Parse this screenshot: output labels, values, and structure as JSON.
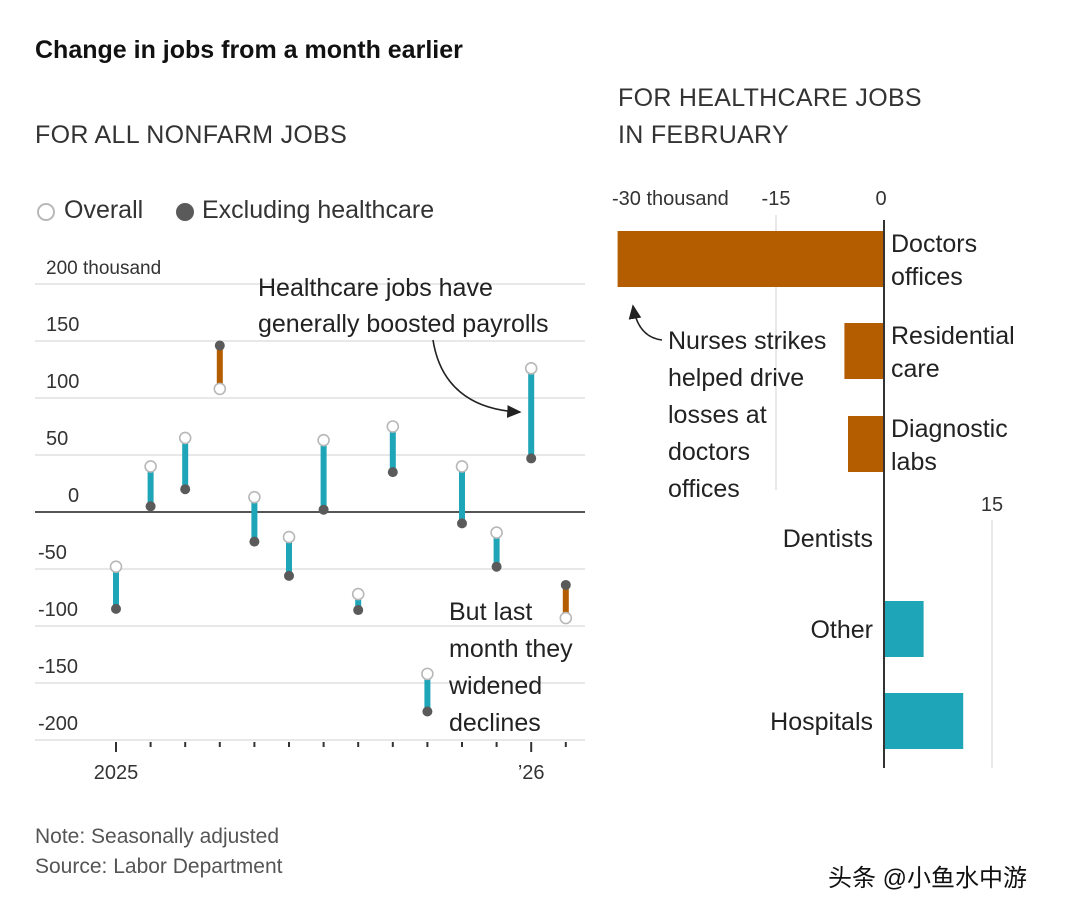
{
  "title": "Change in jobs from a month earlier",
  "left_subhead": "FOR ALL NONFARM JOBS",
  "right_subhead": [
    "FOR HEALTHCARE JOBS",
    "IN FEBRUARY"
  ],
  "legend": {
    "overall": "Overall",
    "excluding": "Excluding healthcare"
  },
  "colors": {
    "teal": "#1ea5b8",
    "orange": "#b35c00",
    "dark_dot": "#5a5a5a",
    "grid": "#d9d9d9",
    "axis": "#555555"
  },
  "notes": [
    "Note: Seasonally adjusted",
    "Source: Labor Department"
  ],
  "watermark": "头条 @小鱼水中游",
  "chart_data": [
    {
      "type": "dumbbell",
      "title": "FOR ALL NONFARM JOBS",
      "ylim": [
        -200,
        200
      ],
      "yticks": [
        200,
        150,
        100,
        50,
        0,
        -50,
        -100,
        -150,
        -200
      ],
      "ytick_labels": [
        "200 thousand",
        "150",
        "100",
        "50",
        "0",
        "-50",
        "-100",
        "-150",
        "-200"
      ],
      "x_labels": [
        "2025",
        "’26"
      ],
      "categories": [
        "2025-01",
        "2025-02",
        "2025-03",
        "2025-04",
        "2025-05",
        "2025-06",
        "2025-07",
        "2025-08",
        "2025-09",
        "2025-10",
        "2025-11",
        "2025-12",
        "2026-01",
        "2026-02"
      ],
      "series": [
        {
          "name": "Overall",
          "values": [
            -48,
            40,
            65,
            108,
            13,
            -22,
            63,
            -72,
            75,
            -142,
            40,
            -18,
            126,
            -93
          ]
        },
        {
          "name": "Excluding healthcare",
          "values": [
            -85,
            5,
            20,
            146,
            -26,
            -56,
            2,
            -86,
            35,
            -175,
            -10,
            -48,
            47,
            -64
          ]
        }
      ],
      "bar_color_by_month": [
        "teal",
        "teal",
        "teal",
        "orange",
        "teal",
        "teal",
        "teal",
        "teal",
        "teal",
        "teal",
        "teal",
        "teal",
        "teal",
        "orange"
      ],
      "annotations": [
        {
          "text": [
            "Healthcare jobs have",
            "generally boosted payrolls"
          ]
        },
        {
          "text": [
            "But last",
            "month they",
            "widened",
            "declines"
          ]
        }
      ]
    },
    {
      "type": "bar",
      "orientation": "horizontal",
      "title": "FOR HEALTHCARE JOBS IN FEBRUARY",
      "xlim": [
        -30,
        15
      ],
      "xticks": [
        -30,
        -15,
        0,
        15
      ],
      "xtick_labels": [
        "-30 thousand",
        "-15",
        "0",
        "15"
      ],
      "categories": [
        [
          "Doctors",
          "offices"
        ],
        [
          "Residential",
          "care"
        ],
        [
          "Diagnostic",
          "labs"
        ],
        [
          "Dentists"
        ],
        [
          "Other"
        ],
        [
          "Hospitals"
        ]
      ],
      "values": [
        -37,
        -5.5,
        -5,
        0,
        5.5,
        11
      ],
      "annotations": [
        {
          "text": [
            "Nurses strikes",
            "helped drive",
            "losses at",
            "doctors",
            "offices"
          ]
        }
      ]
    }
  ]
}
